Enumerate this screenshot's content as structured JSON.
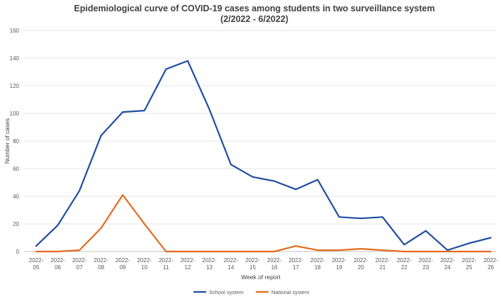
{
  "chart_data": {
    "type": "line",
    "title": "Epidemiological curve of COVID-19 cases among students in two surveillance system",
    "subtitle": "(2/2022 - 6/2022)",
    "xlabel": "Week of report",
    "ylabel": "Number of cases",
    "ylim": [
      0,
      160
    ],
    "yticks": [
      0,
      20,
      40,
      60,
      80,
      100,
      120,
      140,
      160
    ],
    "grid": true,
    "legend_position": "bottom",
    "categories": [
      [
        "2022-",
        "05"
      ],
      [
        "2022-",
        "06"
      ],
      [
        "2022-",
        "07"
      ],
      [
        "2022-",
        "08"
      ],
      [
        "2022-",
        "09"
      ],
      [
        "2022-",
        "10"
      ],
      [
        "2022-",
        "11"
      ],
      [
        "2022-",
        "12"
      ],
      [
        "2022-",
        "13"
      ],
      [
        "2022-",
        "14"
      ],
      [
        "2022-",
        "15"
      ],
      [
        "2022-",
        "16"
      ],
      [
        "2022-",
        "17"
      ],
      [
        "2022-",
        "18"
      ],
      [
        "2022-",
        "19"
      ],
      [
        "2022-",
        "20"
      ],
      [
        "2022-",
        "21"
      ],
      [
        "2022-",
        "22"
      ],
      [
        "2022-",
        "23"
      ],
      [
        "2022-",
        "24"
      ],
      [
        "2022-",
        "25"
      ],
      [
        "2022-",
        "26"
      ]
    ],
    "series": [
      {
        "name": "School system",
        "color": "#1f4ea1",
        "values": [
          4,
          19,
          44,
          84,
          101,
          102,
          132,
          138,
          103,
          63,
          54,
          51,
          45,
          52,
          25,
          24,
          25,
          5,
          15,
          1,
          6,
          10
        ]
      },
      {
        "name": "National system",
        "color": "#e36c1d",
        "values": [
          0,
          0,
          1,
          17,
          41,
          20,
          0,
          0,
          0,
          0,
          0,
          0,
          4,
          1,
          1,
          2,
          1,
          0,
          0,
          0,
          0,
          0
        ]
      }
    ]
  }
}
